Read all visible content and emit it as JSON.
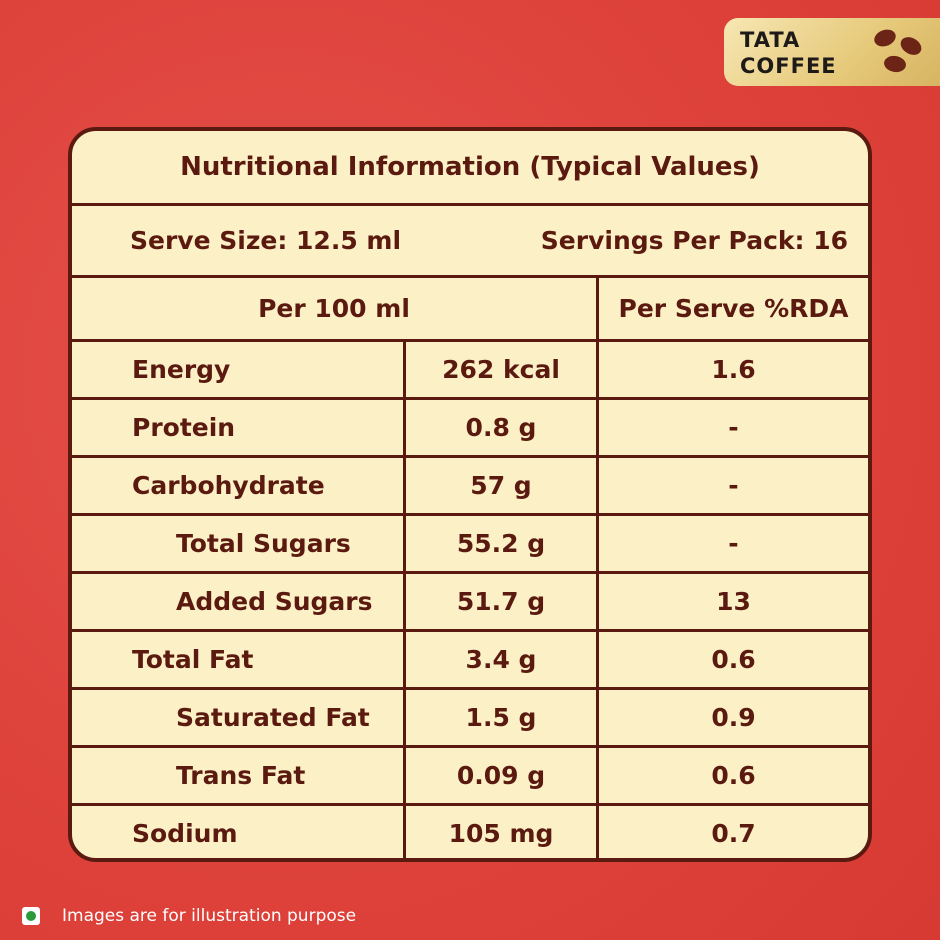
{
  "logo": {
    "line1": "TATA",
    "line2": "COFFEE"
  },
  "title": "Nutritional Information (Typical Values)",
  "serve_size": "Serve Size: 12.5 ml",
  "servings_per_pack": "Servings Per Pack: 16",
  "table": {
    "header": [
      "Per 100 ml",
      "Per Serve %RDA"
    ],
    "rows": [
      [
        "Energy",
        "262 kcal",
        "1.6"
      ],
      [
        "Protein",
        "0.8 g",
        "-"
      ],
      [
        "Carbohydrate",
        "57 g",
        "-"
      ],
      [
        "Total Sugars",
        "55.2 g",
        "-"
      ],
      [
        "Added Sugars",
        "51.7 g",
        "13"
      ],
      [
        "Total Fat",
        "3.4 g",
        "0.6"
      ],
      [
        "Saturated Fat",
        "1.5 g",
        "0.9"
      ],
      [
        "Trans Fat",
        "0.09 g",
        "0.6"
      ],
      [
        "Sodium",
        "105 mg",
        "0.7"
      ]
    ]
  },
  "footer": "Images are for illustration purpose"
}
